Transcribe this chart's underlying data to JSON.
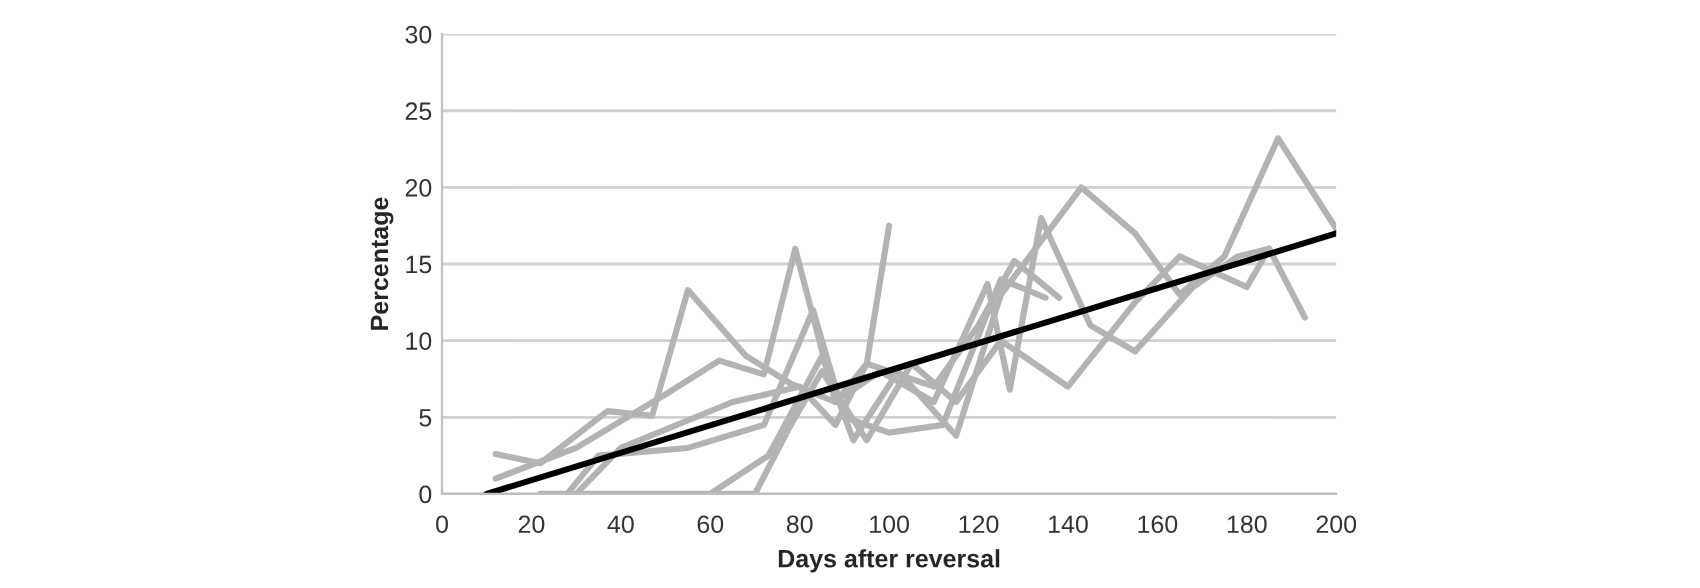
{
  "chart_data": {
    "type": "line",
    "xlabel": "Days after reversal",
    "ylabel": "Percentage",
    "xlim": [
      0,
      200
    ],
    "xticks": [
      0,
      20,
      40,
      60,
      80,
      100,
      120,
      140,
      160,
      180,
      200
    ],
    "ylim": [
      0,
      30
    ],
    "yticks": [
      0,
      5,
      10,
      15,
      20,
      25,
      30
    ],
    "grid": "y",
    "legend": false,
    "marker": "none",
    "line_style": "solid",
    "series": [
      {
        "color": "#b3b3b3",
        "x": [
          12,
          22,
          37,
          47,
          55,
          68,
          78,
          88,
          95,
          100
        ],
        "values": [
          2.6,
          2.0,
          5.4,
          5.1,
          13.3,
          9,
          7.2,
          6,
          8.5,
          17.5
        ]
      },
      {
        "color": "#b3b3b3",
        "x": [
          12,
          30,
          50,
          62,
          72,
          79,
          88,
          98,
          110,
          122,
          127,
          134,
          145,
          155,
          168,
          178,
          185,
          193
        ],
        "values": [
          1.0,
          3.0,
          6.5,
          8.7,
          7.8,
          16,
          6,
          8,
          6,
          13.7,
          6.8,
          18,
          11,
          9.3,
          13.5,
          15.5,
          16,
          11.5
        ]
      },
      {
        "color": "#b3b3b3",
        "x": [
          28,
          35,
          55,
          72,
          83,
          90,
          100,
          112,
          125,
          135
        ],
        "values": [
          0,
          2.5,
          3,
          4.5,
          12,
          5,
          4,
          4.5,
          14,
          12.8
        ]
      },
      {
        "color": "#b3b3b3",
        "x": [
          30,
          40,
          65,
          80,
          88,
          95,
          110,
          120,
          128,
          138
        ],
        "values": [
          0,
          3,
          6,
          7,
          4.5,
          8.5,
          7,
          11,
          15.2,
          12.8
        ]
      },
      {
        "color": "#b3b3b3",
        "x": [
          22,
          60,
          73,
          85,
          92,
          102,
          115,
          125,
          143,
          155,
          165,
          175,
          187,
          200
        ],
        "values": [
          0,
          0,
          2.5,
          9,
          3.5,
          8,
          3.8,
          13,
          20,
          17,
          13,
          15.5,
          23.2,
          17.3
        ]
      },
      {
        "color": "#b3b3b3",
        "x": [
          60,
          70,
          78,
          85,
          95,
          105,
          115,
          125,
          140,
          155,
          165,
          180,
          185
        ],
        "values": [
          0,
          0,
          4.5,
          8,
          3.5,
          8.5,
          6,
          10,
          7,
          12.5,
          15.5,
          13.5,
          16
        ]
      },
      {
        "color": "#000000",
        "x": [
          10,
          200
        ],
        "values": [
          0,
          17
        ]
      }
    ]
  }
}
